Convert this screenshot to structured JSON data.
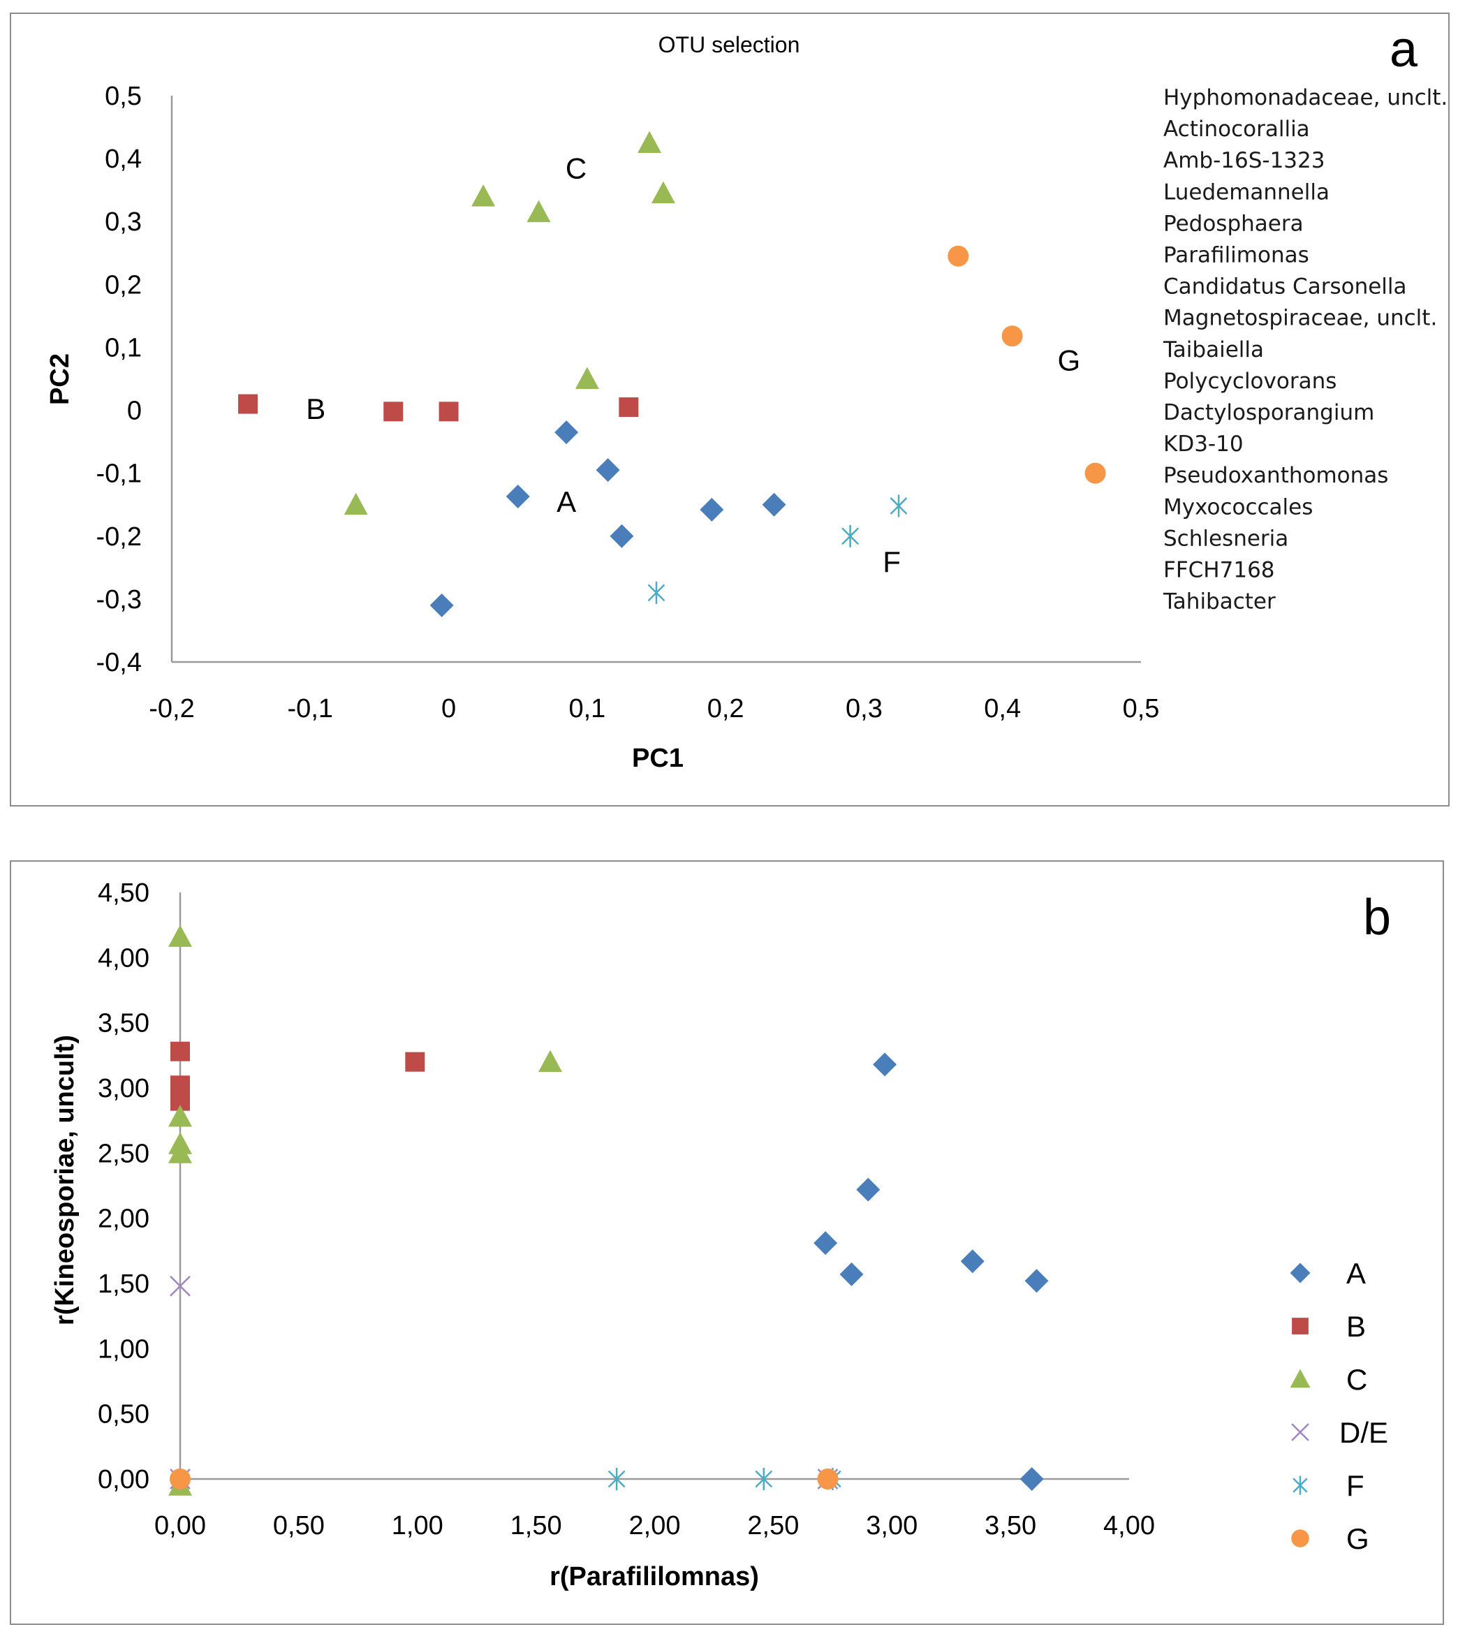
{
  "colors": {
    "A": "#4a7ebb",
    "B": "#be4b48",
    "C": "#98b954",
    "DE": "#a185c0",
    "F": "#4bacc6",
    "G": "#f79646"
  },
  "chart_data": [
    {
      "type": "scatter",
      "panel": "a",
      "title": "OTU selection",
      "xlabel": "PC1",
      "ylabel": "PC2",
      "xlim": [
        -0.2,
        0.5
      ],
      "ylim": [
        -0.4,
        0.5
      ],
      "x_ticks": [
        "-0,2",
        "-0,1",
        "0",
        "0,1",
        "0,2",
        "0,3",
        "0,4",
        "0,5"
      ],
      "y_ticks": [
        "0,5",
        "0,4",
        "0,3",
        "0,2",
        "0,1",
        "0",
        "-0,1",
        "-0,2",
        "-0,3",
        "-0,4"
      ],
      "grid": false,
      "group_labels": [
        {
          "text": "A",
          "x": 0.085,
          "y": -0.145
        },
        {
          "text": "B",
          "x": -0.096,
          "y": 0.003
        },
        {
          "text": "C",
          "x": 0.092,
          "y": 0.385
        },
        {
          "text": "F",
          "x": 0.32,
          "y": -0.24
        },
        {
          "text": "G",
          "x": 0.448,
          "y": 0.08
        }
      ],
      "otu_list": [
        "Hyphomonadaceae, unclt.",
        "Actinocorallia",
        "Amb-16S-1323",
        "Luedemannella",
        "Pedosphaera",
        "Parafilimonas",
        "Candidatus Carsonella",
        "Magnetospiraceae, unclt.",
        "Taibaiella",
        "Polycyclovorans",
        "Dactylosporangium",
        "KD3-10",
        "Pseudoxanthomonas",
        "Myxococcales",
        "Schlesneria",
        "FFCH7168",
        "Tahibacter"
      ],
      "series": [
        {
          "name": "A",
          "marker": "diamond",
          "points": [
            [
              -0.005,
              -0.31
            ],
            [
              0.05,
              -0.137
            ],
            [
              0.085,
              -0.035
            ],
            [
              0.115,
              -0.095
            ],
            [
              0.125,
              -0.2
            ],
            [
              0.19,
              -0.158
            ],
            [
              0.235,
              -0.15
            ]
          ]
        },
        {
          "name": "B",
          "marker": "square",
          "points": [
            [
              -0.145,
              0.01
            ],
            [
              -0.04,
              -0.002
            ],
            [
              0.0,
              -0.002
            ],
            [
              0.13,
              0.005
            ]
          ]
        },
        {
          "name": "C",
          "marker": "triangle",
          "points": [
            [
              0.145,
              0.425
            ],
            [
              0.155,
              0.345
            ],
            [
              0.025,
              0.34
            ],
            [
              0.065,
              0.315
            ],
            [
              0.1,
              0.05
            ],
            [
              -0.067,
              -0.15
            ]
          ]
        },
        {
          "name": "F",
          "marker": "asterisk",
          "points": [
            [
              0.15,
              -0.29
            ],
            [
              0.29,
              -0.2
            ],
            [
              0.325,
              -0.152
            ]
          ]
        },
        {
          "name": "G",
          "marker": "circle",
          "points": [
            [
              0.368,
              0.245
            ],
            [
              0.407,
              0.118
            ],
            [
              0.467,
              -0.1
            ]
          ]
        }
      ]
    },
    {
      "type": "scatter",
      "panel": "b",
      "xlabel": "r(Parafililomnas)",
      "ylabel": "r(Kineosporiae, uncult)",
      "xlim": [
        0,
        4
      ],
      "ylim": [
        0,
        4.5
      ],
      "x_ticks": [
        "0,00",
        "0,50",
        "1,00",
        "1,50",
        "2,00",
        "2,50",
        "3,00",
        "3,50",
        "4,00"
      ],
      "y_ticks": [
        "4,50",
        "4,00",
        "3,50",
        "3,00",
        "2,50",
        "2,00",
        "1,50",
        "1,00",
        "0,50",
        "0,00"
      ],
      "grid": false,
      "legend_position": "right",
      "legend": [
        {
          "key": "A",
          "label": "A",
          "marker": "diamond"
        },
        {
          "key": "B",
          "label": "B",
          "marker": "square"
        },
        {
          "key": "C",
          "label": "C",
          "marker": "triangle"
        },
        {
          "key": "DE",
          "label": "D/E",
          "marker": "cross"
        },
        {
          "key": "F",
          "label": "F",
          "marker": "asterisk"
        },
        {
          "key": "G",
          "label": "G",
          "marker": "circle"
        }
      ],
      "series": [
        {
          "name": "A",
          "marker": "diamond",
          "points": [
            [
              2.97,
              3.18
            ],
            [
              2.9,
              2.22
            ],
            [
              2.72,
              1.81
            ],
            [
              2.83,
              1.57
            ],
            [
              3.34,
              1.67
            ],
            [
              3.61,
              1.52
            ],
            [
              3.59,
              0.0
            ]
          ]
        },
        {
          "name": "B",
          "marker": "square",
          "points": [
            [
              0.0,
              3.28
            ],
            [
              0.0,
              3.02
            ],
            [
              0.0,
              2.9
            ],
            [
              0.99,
              3.2
            ]
          ]
        },
        {
          "name": "C",
          "marker": "triangle",
          "points": [
            [
              0.0,
              4.16
            ],
            [
              0.0,
              2.78
            ],
            [
              0.0,
              2.57
            ],
            [
              0.0,
              2.5
            ],
            [
              1.56,
              3.2
            ],
            [
              0.0,
              -0.05
            ]
          ]
        },
        {
          "name": "DE",
          "marker": "cross",
          "points": [
            [
              0.0,
              1.48
            ],
            [
              0.0,
              0.0
            ],
            [
              2.73,
              0.0
            ]
          ]
        },
        {
          "name": "F",
          "marker": "asterisk",
          "points": [
            [
              1.84,
              0.0
            ],
            [
              2.46,
              0.0
            ],
            [
              2.75,
              0.0
            ]
          ]
        },
        {
          "name": "G",
          "marker": "circle",
          "points": [
            [
              0.0,
              0.0
            ],
            [
              2.73,
              0.0
            ]
          ]
        }
      ]
    }
  ]
}
